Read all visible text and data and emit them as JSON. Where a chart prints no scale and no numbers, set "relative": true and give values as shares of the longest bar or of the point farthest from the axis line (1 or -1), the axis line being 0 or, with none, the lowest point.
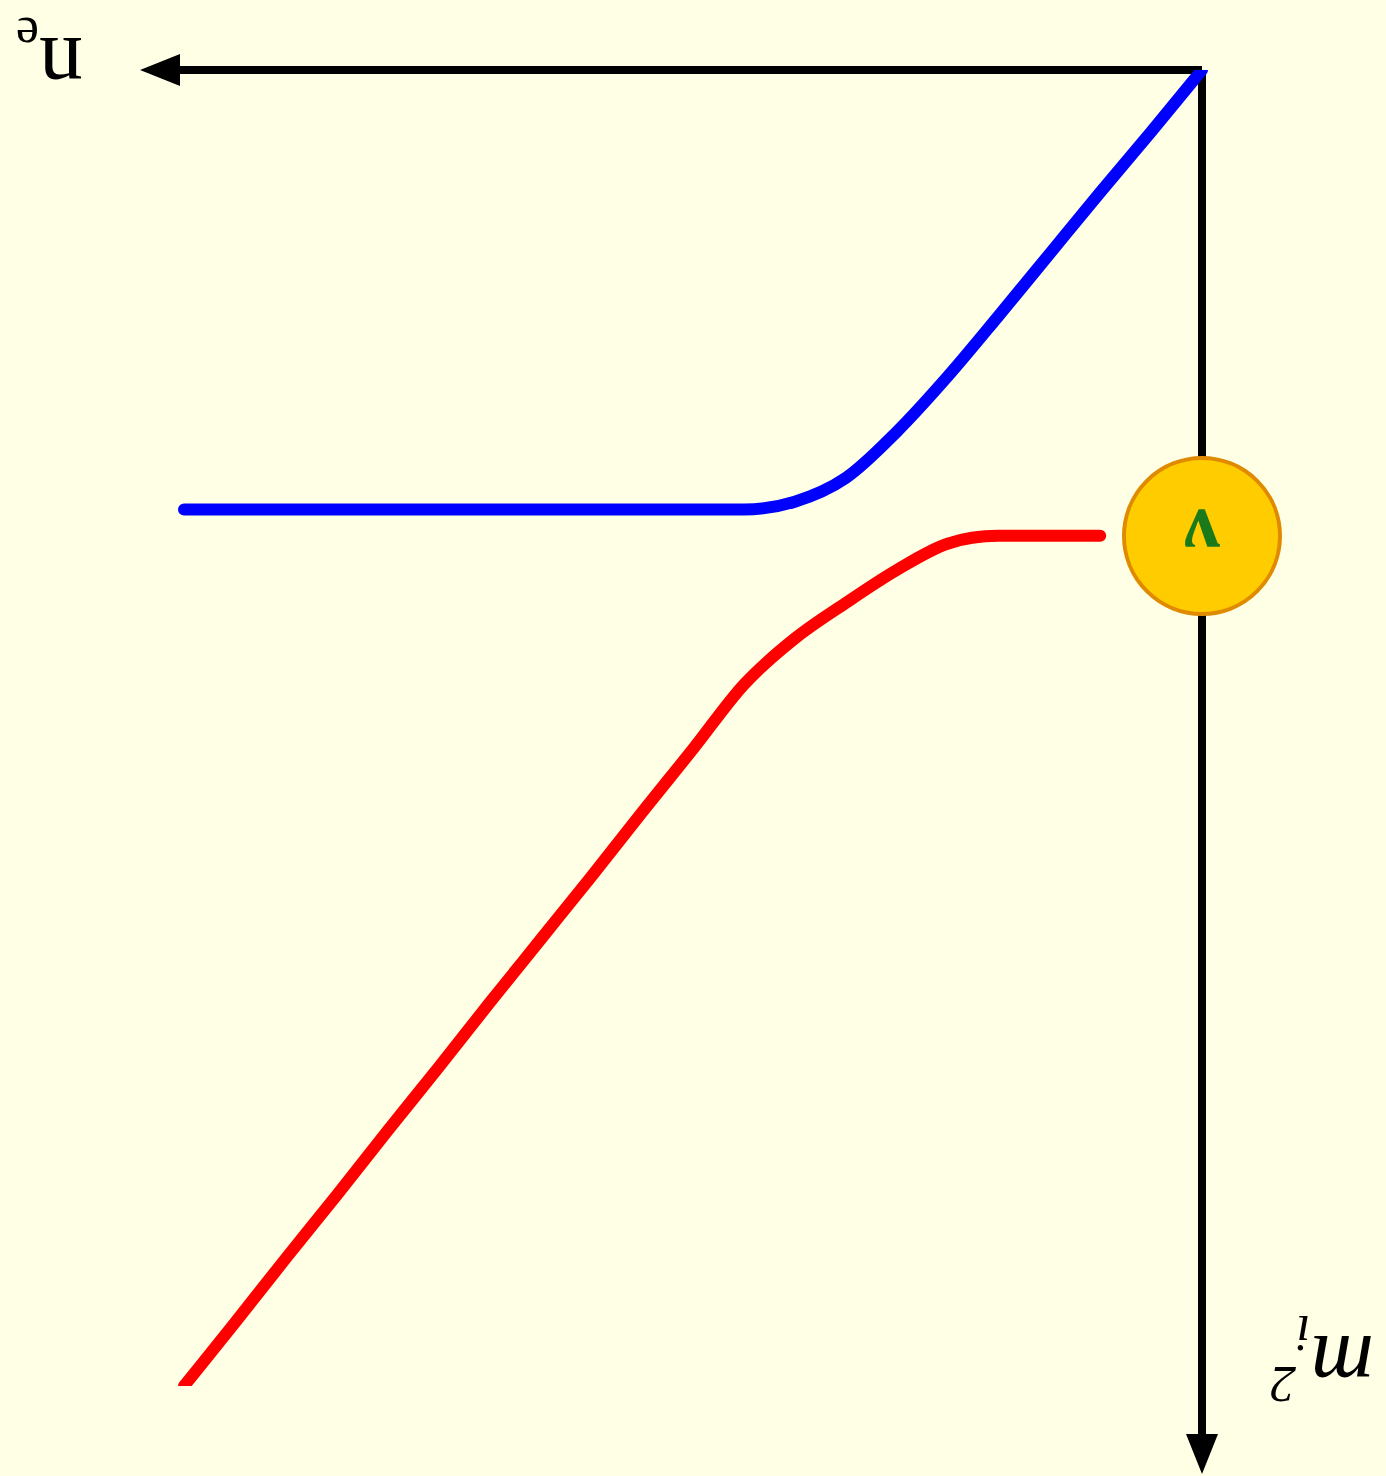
{
  "chart_data": {
    "type": "line",
    "relative": true,
    "xlabel": "n$_{e}$",
    "ylabel": "m$_{i}$$^{2}$",
    "annotations": [
      "ν"
    ],
    "legend": false,
    "line_style": "solid",
    "categories": [
      null,
      null,
      null,
      null,
      null,
      null,
      null,
      null,
      null,
      null,
      null,
      null,
      null,
      null,
      null,
      null,
      null,
      null,
      null,
      null,
      null
    ],
    "series": [
      {
        "color": "#0000ff",
        "values": [
          -0.334,
          -0.334,
          -0.334,
          -0.334,
          -0.334,
          -0.334,
          -0.334,
          -0.334,
          -0.334,
          -0.334,
          -0.334,
          -0.334,
          -0.328,
          -0.31,
          -0.275,
          -0.233,
          -0.187,
          -0.14,
          -0.093,
          -0.047,
          0
        ]
      },
      {
        "color": "#ff0000",
        "values": [
          -1,
          -0.952,
          -0.903,
          -0.855,
          -0.806,
          -0.758,
          -0.709,
          -0.661,
          -0.613,
          -0.564,
          -0.516,
          -0.467,
          -0.432,
          -0.405,
          -0.38,
          -0.36,
          -0.354,
          -0.354,
          -0.354,
          null,
          null
        ]
      }
    ]
  }
}
